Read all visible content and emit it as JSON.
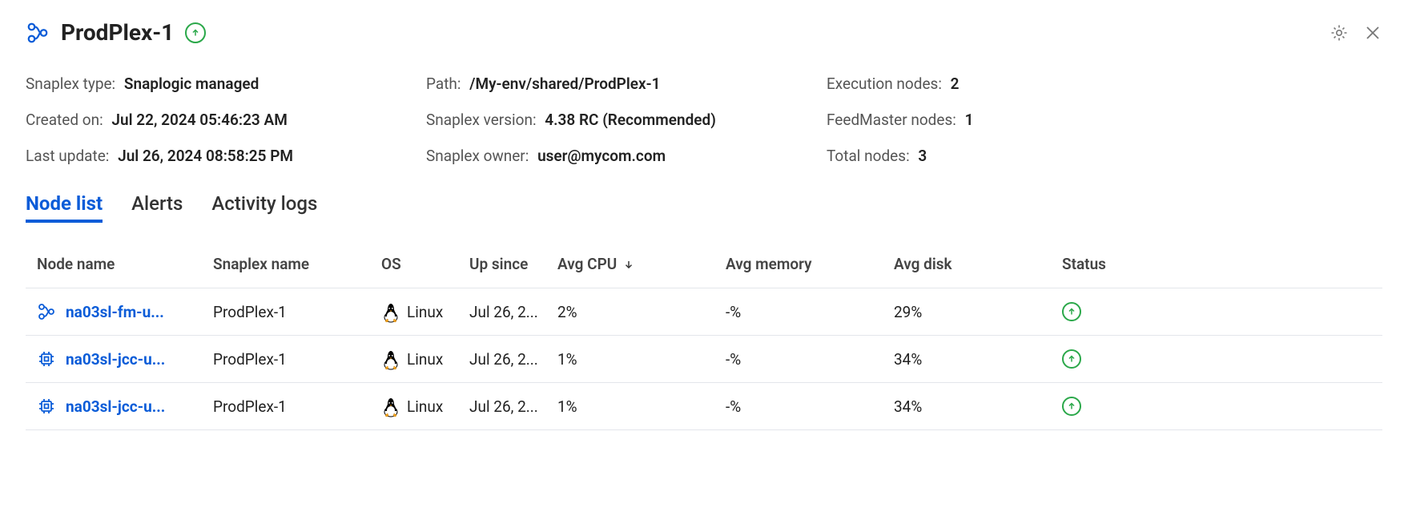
{
  "header": {
    "title": "ProdPlex-1",
    "status_icon": "up-arrow",
    "actions": {
      "settings": "gear-icon",
      "close": "close-icon"
    }
  },
  "meta": {
    "snaplex_type_label": "Snaplex type:",
    "snaplex_type_value": "Snaplogic managed",
    "created_on_label": "Created on:",
    "created_on_value": "Jul 22, 2024 05:46:23 AM",
    "last_update_label": "Last update:",
    "last_update_value": "Jul 26, 2024 08:58:25 PM",
    "path_label": "Path:",
    "path_value": "/My-env/shared/ProdPlex-1",
    "snaplex_version_label": "Snaplex version:",
    "snaplex_version_value": "4.38 RC (Recommended)",
    "snaplex_owner_label": "Snaplex owner:",
    "snaplex_owner_value": "user@mycom.com",
    "exec_nodes_label": "Execution nodes:",
    "exec_nodes_value": "2",
    "feedmaster_label": "FeedMaster nodes:",
    "feedmaster_value": "1",
    "total_nodes_label": "Total nodes:",
    "total_nodes_value": "3"
  },
  "tabs": {
    "node_list": "Node list",
    "alerts": "Alerts",
    "activity_logs": "Activity logs",
    "active": "node_list"
  },
  "table": {
    "headers": {
      "node_name": "Node name",
      "snaplex_name": "Snaplex name",
      "os": "OS",
      "up_since": "Up since",
      "avg_cpu": "Avg CPU",
      "avg_memory": "Avg memory",
      "avg_disk": "Avg disk",
      "status": "Status"
    },
    "sort": {
      "column": "avg_cpu",
      "direction": "desc"
    },
    "rows": [
      {
        "node_icon": "plex",
        "node_name": "na03sl-fm-u...",
        "snaplex_name": "ProdPlex-1",
        "os_icon": "linux",
        "os": "Linux",
        "up_since": "Jul 26, 2...",
        "avg_cpu": "2%",
        "avg_memory": "-%",
        "avg_disk": "29%",
        "status": "up"
      },
      {
        "node_icon": "chip",
        "node_name": "na03sl-jcc-u...",
        "snaplex_name": "ProdPlex-1",
        "os_icon": "linux",
        "os": "Linux",
        "up_since": "Jul 26, 2...",
        "avg_cpu": "1%",
        "avg_memory": "-%",
        "avg_disk": "34%",
        "status": "up"
      },
      {
        "node_icon": "chip",
        "node_name": "na03sl-jcc-u...",
        "snaplex_name": "ProdPlex-1",
        "os_icon": "linux",
        "os": "Linux",
        "up_since": "Jul 26, 2...",
        "avg_cpu": "1%",
        "avg_memory": "-%",
        "avg_disk": "34%",
        "status": "up"
      }
    ]
  },
  "colors": {
    "primary": "#0b5cd8",
    "success": "#2ba84a",
    "border": "#e3e6eb",
    "text": "#222222",
    "muted": "#555555"
  }
}
